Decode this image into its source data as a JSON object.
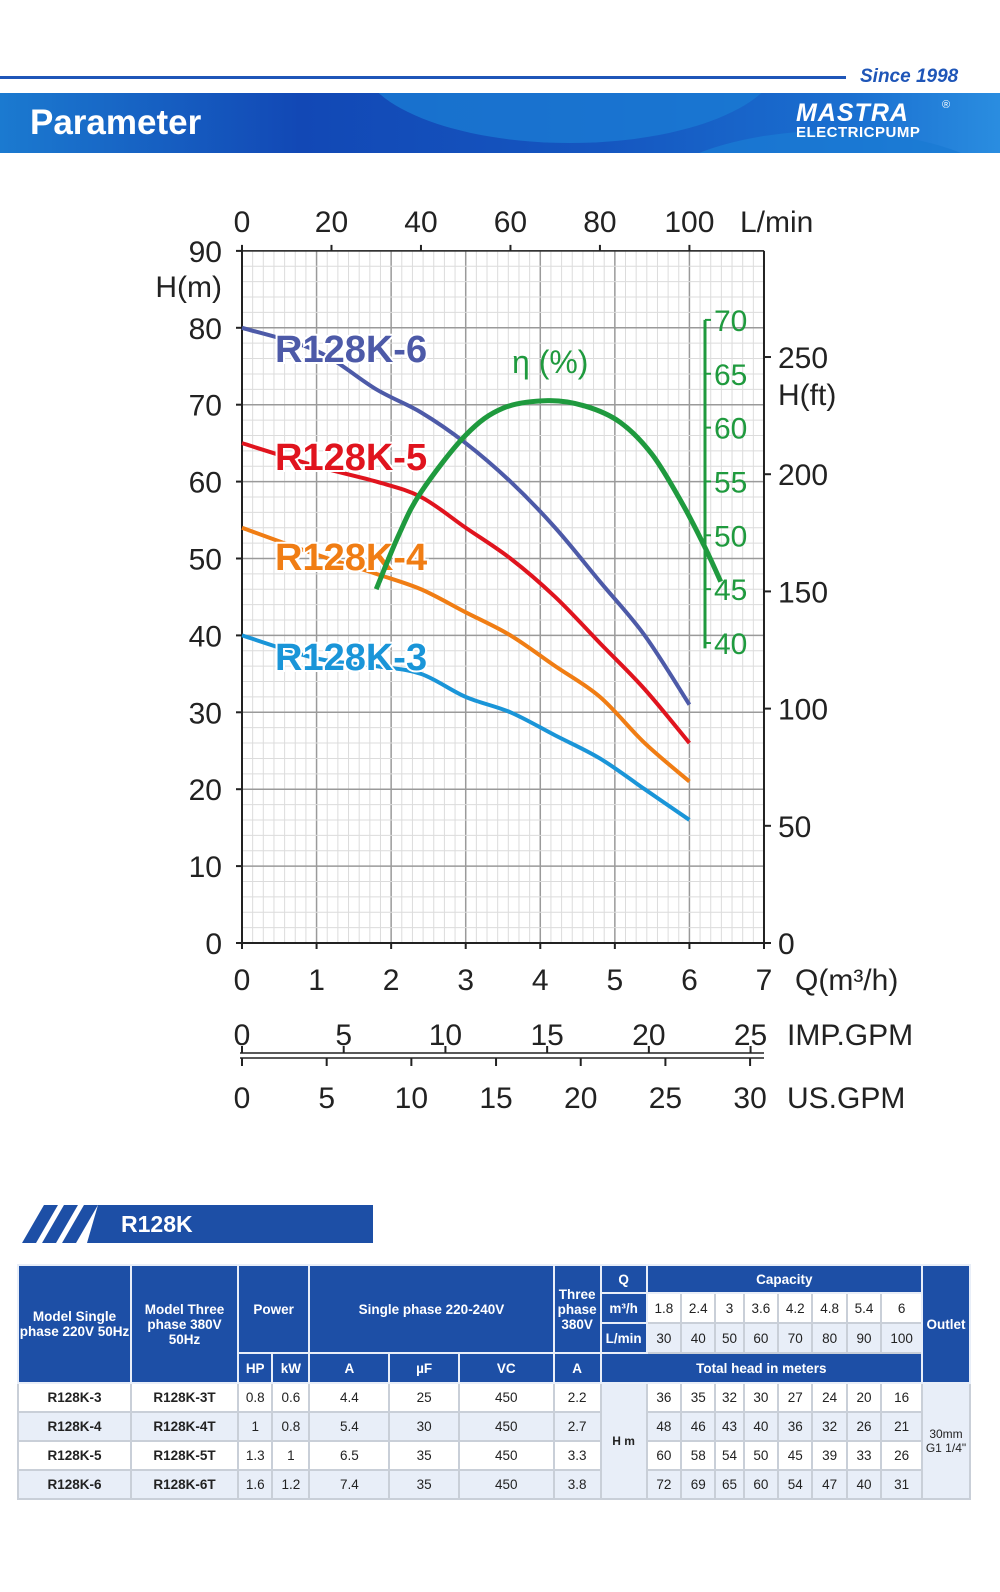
{
  "header": {
    "since": "Since 1998",
    "banner_title": "Parameter",
    "logo_mark": "MASTRA",
    "logo_sub": "ELECTRICPUMP",
    "logo_reg": "®",
    "accent": "#1d4fa6"
  },
  "chart_data": {
    "type": "line",
    "xlabel": "Q(m³/h)",
    "ylabel": "H(m)",
    "xlim": [
      0,
      7
    ],
    "ylim": [
      0,
      90
    ],
    "grid": true,
    "x_ticks": [
      "0",
      "1",
      "2",
      "3",
      "4",
      "5",
      "6",
      "7"
    ],
    "y_ticks": [
      "0",
      "10",
      "20",
      "30",
      "40",
      "50",
      "60",
      "70",
      "80",
      "90"
    ],
    "top_axis": {
      "label": "L/min",
      "ticks": [
        "0",
        "20",
        "40",
        "60",
        "80",
        "100"
      ]
    },
    "right_axis": {
      "label": "H(ft)",
      "ticks": [
        "0",
        "50",
        "100",
        "150",
        "200",
        "250"
      ]
    },
    "eff_axis": {
      "label": "η (%)",
      "ticks": [
        "40",
        "45",
        "50",
        "55",
        "60",
        "65",
        "70"
      ],
      "color": "#1f9a3e"
    },
    "imp_axis": {
      "label": "IMP.GPM",
      "ticks": [
        "0",
        "5",
        "10",
        "15",
        "20",
        "25"
      ]
    },
    "us_axis": {
      "label": "US.GPM",
      "ticks": [
        "0",
        "5",
        "10",
        "15",
        "20",
        "25",
        "30"
      ]
    },
    "series": [
      {
        "name": "R128K-6",
        "color": "#4d5aa8",
        "x": [
          0,
          1,
          1.8,
          2.4,
          3,
          3.6,
          4.2,
          4.8,
          5.4,
          6
        ],
        "y": [
          80,
          77,
          72,
          69,
          65,
          60,
          54,
          47,
          40,
          31
        ]
      },
      {
        "name": "R128K-5",
        "color": "#e0141e",
        "x": [
          0,
          1,
          1.8,
          2.4,
          3,
          3.6,
          4.2,
          4.8,
          5.4,
          6
        ],
        "y": [
          65,
          62,
          60,
          58,
          54,
          50,
          45,
          39,
          33,
          26
        ]
      },
      {
        "name": "R128K-4",
        "color": "#f07d14",
        "x": [
          0,
          1,
          1.8,
          2.4,
          3,
          3.6,
          4.2,
          4.8,
          5.4,
          6
        ],
        "y": [
          54,
          50.5,
          48,
          46,
          43,
          40,
          36,
          32,
          26,
          21
        ]
      },
      {
        "name": "R128K-3",
        "color": "#1a95d8",
        "x": [
          0,
          1,
          1.8,
          2.4,
          3,
          3.6,
          4.2,
          4.8,
          5.4,
          6
        ],
        "y": [
          40,
          37,
          36,
          35,
          32,
          30,
          27,
          24,
          20,
          16
        ]
      },
      {
        "name": "η (%)",
        "color": "#1f9a3e",
        "axis": "eff",
        "x": [
          1.8,
          2.1,
          2.4,
          3,
          3.5,
          4.1,
          4.6,
          5.07,
          5.5,
          5.9,
          6.2,
          6.42
        ],
        "y": [
          45,
          50,
          54,
          59.3,
          61.8,
          62.5,
          62,
          60.5,
          57.5,
          53,
          49,
          45.7
        ]
      }
    ]
  },
  "model_tab": "R128K",
  "table": {
    "h_model1": "Model Single phase 220V 50Hz",
    "h_model2": "Model Three phase 380V 50Hz",
    "h_power": "Power",
    "h_single": "Single phase 220-240V",
    "h_three": "Three phase 380V",
    "h_q": "Q",
    "h_capacity": "Capacity",
    "h_outlet": "Outlet",
    "h_m3h": "m³/h",
    "h_lmin": "L/min",
    "m3h": [
      "1.8",
      "2.4",
      "3",
      "3.6",
      "4.2",
      "4.8",
      "5.4",
      "6"
    ],
    "lmin": [
      "30",
      "40",
      "50",
      "60",
      "70",
      "80",
      "90",
      "100"
    ],
    "sub": [
      "HP",
      "kW",
      "A",
      "µF",
      "VC",
      "A"
    ],
    "h_total": "Total head in meters",
    "h_unit": "H m",
    "outlet": "30mm G1 1/4\"",
    "rows": [
      {
        "m1": "R128K-3",
        "m2": "R128K-3T",
        "vals": [
          "0.8",
          "0.6",
          "4.4",
          "25",
          "450",
          "2.2"
        ],
        "heads": [
          "36",
          "35",
          "32",
          "30",
          "27",
          "24",
          "20",
          "16"
        ]
      },
      {
        "m1": "R128K-4",
        "m2": "R128K-4T",
        "vals": [
          "1",
          "0.8",
          "5.4",
          "30",
          "450",
          "2.7"
        ],
        "heads": [
          "48",
          "46",
          "43",
          "40",
          "36",
          "32",
          "26",
          "21"
        ]
      },
      {
        "m1": "R128K-5",
        "m2": "R128K-5T",
        "vals": [
          "1.3",
          "1",
          "6.5",
          "35",
          "450",
          "3.3"
        ],
        "heads": [
          "60",
          "58",
          "54",
          "50",
          "45",
          "39",
          "33",
          "26"
        ]
      },
      {
        "m1": "R128K-6",
        "m2": "R128K-6T",
        "vals": [
          "1.6",
          "1.2",
          "7.4",
          "35",
          "450",
          "3.8"
        ],
        "heads": [
          "72",
          "69",
          "65",
          "60",
          "54",
          "47",
          "40",
          "31"
        ]
      }
    ]
  }
}
